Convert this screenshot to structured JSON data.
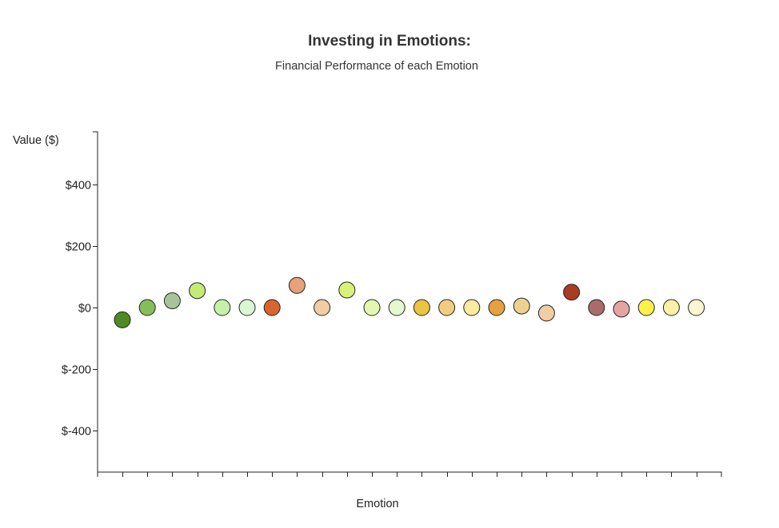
{
  "chart_data": {
    "type": "scatter",
    "title": "Investing in Emotions:",
    "subtitle": "Financial Performance of each Emotion",
    "xlabel": "Emotion",
    "ylabel": "Value ($)",
    "ylim": [
      -530,
      580
    ],
    "yticks": [
      {
        "value": 400,
        "label": "$400"
      },
      {
        "value": 200,
        "label": "$200"
      },
      {
        "value": 0,
        "label": "$0"
      },
      {
        "value": -200,
        "label": "$-200"
      },
      {
        "value": -400,
        "label": "$-400"
      }
    ],
    "grid": false,
    "legend": "none",
    "points": [
      {
        "value": -40,
        "color": "#4f8a23"
      },
      {
        "value": 0,
        "color": "#86bd5b"
      },
      {
        "value": 22,
        "color": "#a8c39a"
      },
      {
        "value": 55,
        "color": "#c3eb76"
      },
      {
        "value": 0,
        "color": "#c5f0a8"
      },
      {
        "value": 0,
        "color": "#dbf6d1"
      },
      {
        "value": 0,
        "color": "#d9642c"
      },
      {
        "value": 72,
        "color": "#e6a27a"
      },
      {
        "value": 0,
        "color": "#f1cda4"
      },
      {
        "value": 57,
        "color": "#d9f27a"
      },
      {
        "value": 0,
        "color": "#e3f7b0"
      },
      {
        "value": 0,
        "color": "#e6f8d2"
      },
      {
        "value": 0,
        "color": "#ecc443"
      },
      {
        "value": 0,
        "color": "#f1cd7f"
      },
      {
        "value": 0,
        "color": "#fbeaa0"
      },
      {
        "value": 0,
        "color": "#e6a13e"
      },
      {
        "value": 5,
        "color": "#edd18e"
      },
      {
        "value": -18,
        "color": "#f1cda4"
      },
      {
        "value": 50,
        "color": "#a93d1f"
      },
      {
        "value": 0,
        "color": "#a96c6a"
      },
      {
        "value": -5,
        "color": "#e3a4a2"
      },
      {
        "value": 0,
        "color": "#fbf04c"
      },
      {
        "value": 0,
        "color": "#fbf0a8"
      },
      {
        "value": 0,
        "color": "#fbf4d2"
      }
    ]
  }
}
